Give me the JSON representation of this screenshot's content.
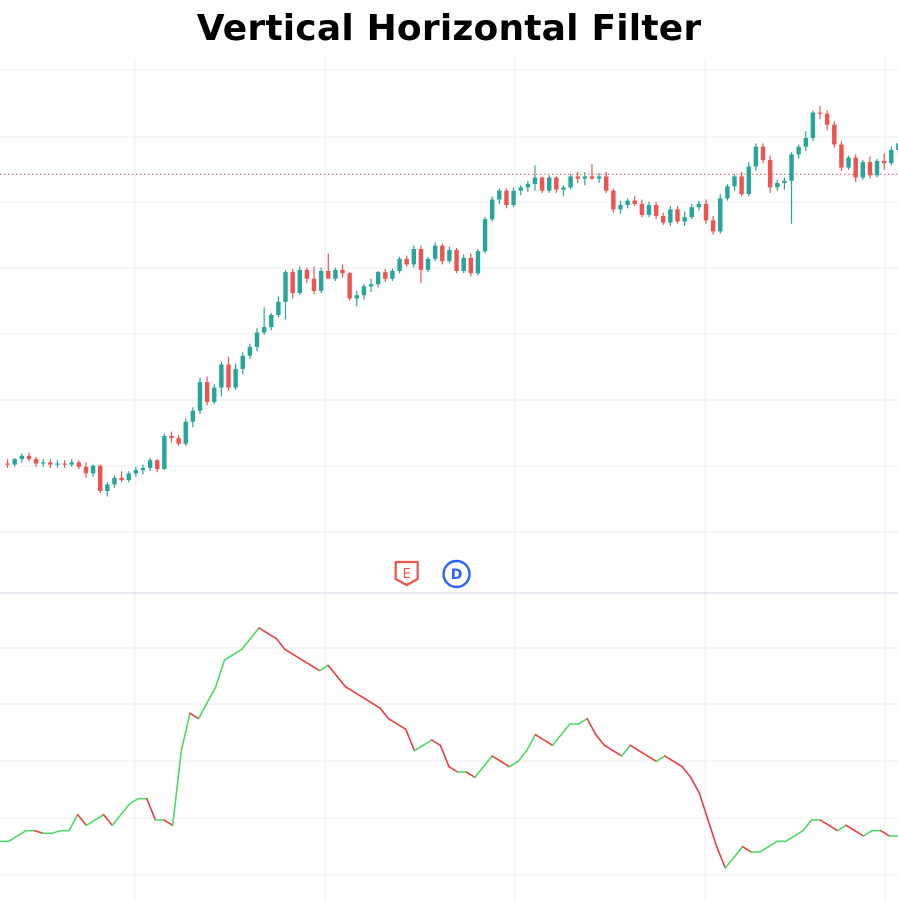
{
  "title": "Vertical Horizontal Filter",
  "colors": {
    "up": "#26a69a",
    "down": "#ef5350",
    "grid": "#eceef2",
    "separator": "#dfe3ec",
    "price_line": "#ef5350",
    "vhf_up": "#4cd964",
    "vhf_down": "#ef3b3b",
    "earnings_marker": "#ef5350",
    "dividend_marker": "#2962ff"
  },
  "markers": [
    {
      "label": "E",
      "kind": "earnings",
      "icon": "earnings-flag-icon",
      "index": 56
    },
    {
      "label": "D",
      "kind": "dividend",
      "icon": "dividend-circle-icon",
      "index": 63
    }
  ],
  "chart_data": [
    {
      "type": "candlestick",
      "title": "",
      "grid": true,
      "price_line": 62.8,
      "ylim": [
        25,
        73
      ],
      "ohlc": [
        [
          36.5,
          36.9,
          36.1,
          36.4
        ],
        [
          36.4,
          37.0,
          36.2,
          36.9
        ],
        [
          36.9,
          37.4,
          36.6,
          37.2
        ],
        [
          37.2,
          37.5,
          36.7,
          36.9
        ],
        [
          36.9,
          37.1,
          36.2,
          36.5
        ],
        [
          36.5,
          36.9,
          36.2,
          36.6
        ],
        [
          36.6,
          36.9,
          36.1,
          36.4
        ],
        [
          36.4,
          36.8,
          36.1,
          36.5
        ],
        [
          36.5,
          36.8,
          36.1,
          36.4
        ],
        [
          36.4,
          36.9,
          36.2,
          36.6
        ],
        [
          36.6,
          36.8,
          36.0,
          36.2
        ],
        [
          36.2,
          36.6,
          35.2,
          35.6
        ],
        [
          35.6,
          36.4,
          35.3,
          36.3
        ],
        [
          36.3,
          36.4,
          33.8,
          34.0
        ],
        [
          34.0,
          34.8,
          33.5,
          34.6
        ],
        [
          34.6,
          35.4,
          34.3,
          35.2
        ],
        [
          35.2,
          35.8,
          34.8,
          35.0
        ],
        [
          35.0,
          35.8,
          34.8,
          35.6
        ],
        [
          35.6,
          36.2,
          35.3,
          35.9
        ],
        [
          35.9,
          36.4,
          35.5,
          36.1
        ],
        [
          36.1,
          37.0,
          35.8,
          36.8
        ],
        [
          36.8,
          36.9,
          35.7,
          36.0
        ],
        [
          36.0,
          39.2,
          35.9,
          39.0
        ],
        [
          39.0,
          39.4,
          38.4,
          38.8
        ],
        [
          38.8,
          39.1,
          38.1,
          38.3
        ],
        [
          38.3,
          40.6,
          38.1,
          40.3
        ],
        [
          40.3,
          41.6,
          39.8,
          41.3
        ],
        [
          41.3,
          44.3,
          41.0,
          43.9
        ],
        [
          43.9,
          44.4,
          41.8,
          42.1
        ],
        [
          42.1,
          43.7,
          41.9,
          43.4
        ],
        [
          43.4,
          45.8,
          42.6,
          45.5
        ],
        [
          45.5,
          46.2,
          43.1,
          43.4
        ],
        [
          43.4,
          45.6,
          43.2,
          45.1
        ],
        [
          45.1,
          46.6,
          44.6,
          46.3
        ],
        [
          46.3,
          47.4,
          46.0,
          47.1
        ],
        [
          47.1,
          48.8,
          46.7,
          48.4
        ],
        [
          48.4,
          50.7,
          48.2,
          48.9
        ],
        [
          48.9,
          50.2,
          48.6,
          50.0
        ],
        [
          50.0,
          51.7,
          49.8,
          51.2
        ],
        [
          51.2,
          54.1,
          49.6,
          53.9
        ],
        [
          53.9,
          54.2,
          51.5,
          52.0
        ],
        [
          52.0,
          54.4,
          51.8,
          54.1
        ],
        [
          54.1,
          54.3,
          52.9,
          53.3
        ],
        [
          53.3,
          54.4,
          51.9,
          52.2
        ],
        [
          52.2,
          54.3,
          52.0,
          54.0
        ],
        [
          54.0,
          55.6,
          53.6,
          53.3
        ],
        [
          53.3,
          54.3,
          53.1,
          54.1
        ],
        [
          54.1,
          54.6,
          53.4,
          53.8
        ],
        [
          53.8,
          53.9,
          51.3,
          51.5
        ],
        [
          51.5,
          52.2,
          50.8,
          51.8
        ],
        [
          51.8,
          52.8,
          51.4,
          52.6
        ],
        [
          52.6,
          53.3,
          52.1,
          52.8
        ],
        [
          52.8,
          54.0,
          52.5,
          53.9
        ],
        [
          53.9,
          54.2,
          53.0,
          53.3
        ],
        [
          53.3,
          54.2,
          53.1,
          54.0
        ],
        [
          54.0,
          55.3,
          53.8,
          55.1
        ],
        [
          55.1,
          55.4,
          54.4,
          54.6
        ],
        [
          54.6,
          56.3,
          54.3,
          56.0
        ],
        [
          56.0,
          56.3,
          52.9,
          54.1
        ],
        [
          54.1,
          55.3,
          53.9,
          55.1
        ],
        [
          55.1,
          56.6,
          54.9,
          56.3
        ],
        [
          56.3,
          56.5,
          54.6,
          54.9
        ],
        [
          54.9,
          56.2,
          54.7,
          55.9
        ],
        [
          55.9,
          56.1,
          53.8,
          54.0
        ],
        [
          54.0,
          55.5,
          53.8,
          55.2
        ],
        [
          55.2,
          55.6,
          53.5,
          53.8
        ],
        [
          53.8,
          56.0,
          53.6,
          55.8
        ],
        [
          55.8,
          58.9,
          55.6,
          58.7
        ],
        [
          58.7,
          60.8,
          58.5,
          60.5
        ],
        [
          60.5,
          61.5,
          60.1,
          61.3
        ],
        [
          61.3,
          61.5,
          59.7,
          60.0
        ],
        [
          60.0,
          61.6,
          59.8,
          61.3
        ],
        [
          61.3,
          61.8,
          60.9,
          61.6
        ],
        [
          61.6,
          62.2,
          61.2,
          61.9
        ],
        [
          61.9,
          63.6,
          61.3,
          62.5
        ],
        [
          62.5,
          62.6,
          61.1,
          61.3
        ],
        [
          61.3,
          62.7,
          61.1,
          62.5
        ],
        [
          62.5,
          62.6,
          61.1,
          61.4
        ],
        [
          61.4,
          61.8,
          60.8,
          61.6
        ],
        [
          61.6,
          62.8,
          61.4,
          62.6
        ],
        [
          62.6,
          63.0,
          62.0,
          62.4
        ],
        [
          62.4,
          63.0,
          61.8,
          62.6
        ],
        [
          62.6,
          63.7,
          62.3,
          62.4
        ],
        [
          62.4,
          62.9,
          62.0,
          62.6
        ],
        [
          62.6,
          63.0,
          61.1,
          61.3
        ],
        [
          61.3,
          61.5,
          59.3,
          59.6
        ],
        [
          59.6,
          60.4,
          59.2,
          60.0
        ],
        [
          60.0,
          60.6,
          59.7,
          60.4
        ],
        [
          60.4,
          60.8,
          59.9,
          60.1
        ],
        [
          60.1,
          60.5,
          58.9,
          59.1
        ],
        [
          59.1,
          60.3,
          58.9,
          60.0
        ],
        [
          60.0,
          60.3,
          58.7,
          59.0
        ],
        [
          59.0,
          59.3,
          58.2,
          58.4
        ],
        [
          58.4,
          59.9,
          58.1,
          59.6
        ],
        [
          59.6,
          59.9,
          58.3,
          58.5
        ],
        [
          58.5,
          59.4,
          58.1,
          58.9
        ],
        [
          58.9,
          60.1,
          58.7,
          59.8
        ],
        [
          59.8,
          60.4,
          59.5,
          60.1
        ],
        [
          60.1,
          60.5,
          58.3,
          58.6
        ],
        [
          58.6,
          59.0,
          57.3,
          57.6
        ],
        [
          57.6,
          61.0,
          57.4,
          60.6
        ],
        [
          60.6,
          61.9,
          60.4,
          61.7
        ],
        [
          61.7,
          62.8,
          61.3,
          62.6
        ],
        [
          62.6,
          63.0,
          60.8,
          61.0
        ],
        [
          61.0,
          63.9,
          60.8,
          63.5
        ],
        [
          63.5,
          65.6,
          63.1,
          65.3
        ],
        [
          65.3,
          65.6,
          63.8,
          64.1
        ],
        [
          64.1,
          64.5,
          61.1,
          61.6
        ],
        [
          61.6,
          62.3,
          61.3,
          62.0
        ],
        [
          62.0,
          62.5,
          61.4,
          62.2
        ],
        [
          62.2,
          64.8,
          58.3,
          64.6
        ],
        [
          64.6,
          65.5,
          64.2,
          65.3
        ],
        [
          65.3,
          66.7,
          64.9,
          66.1
        ],
        [
          66.1,
          68.6,
          65.8,
          68.4
        ],
        [
          68.4,
          69.0,
          67.8,
          68.3
        ],
        [
          68.3,
          68.6,
          66.8,
          67.3
        ],
        [
          67.3,
          67.6,
          65.2,
          65.5
        ],
        [
          65.5,
          65.8,
          63.1,
          63.4
        ],
        [
          63.4,
          64.5,
          63.2,
          64.3
        ],
        [
          64.3,
          64.6,
          62.1,
          62.5
        ],
        [
          62.5,
          64.1,
          62.3,
          63.9
        ],
        [
          63.9,
          64.4,
          62.4,
          62.7
        ],
        [
          62.7,
          64.2,
          62.5,
          64.0
        ],
        [
          64.0,
          64.7,
          63.2,
          63.8
        ],
        [
          63.8,
          65.3,
          63.6,
          65.0
        ],
        [
          65.0,
          65.9,
          64.5,
          65.6
        ]
      ]
    },
    {
      "type": "line",
      "title": "",
      "name": "",
      "grid": true,
      "ylim": [
        0.05,
        0.62
      ],
      "values": [
        0.16,
        0.16,
        0.17,
        0.18,
        0.18,
        0.175,
        0.175,
        0.18,
        0.18,
        0.21,
        0.19,
        0.2,
        0.21,
        0.19,
        0.21,
        0.23,
        0.24,
        0.24,
        0.2,
        0.2,
        0.19,
        0.33,
        0.4,
        0.39,
        0.42,
        0.45,
        0.5,
        0.51,
        0.52,
        0.54,
        0.56,
        0.55,
        0.54,
        0.52,
        0.51,
        0.5,
        0.49,
        0.48,
        0.49,
        0.47,
        0.45,
        0.44,
        0.43,
        0.42,
        0.41,
        0.39,
        0.38,
        0.37,
        0.33,
        0.34,
        0.35,
        0.34,
        0.3,
        0.29,
        0.29,
        0.28,
        0.3,
        0.32,
        0.31,
        0.3,
        0.31,
        0.33,
        0.36,
        0.35,
        0.34,
        0.36,
        0.38,
        0.38,
        0.39,
        0.36,
        0.34,
        0.33,
        0.32,
        0.34,
        0.33,
        0.32,
        0.31,
        0.32,
        0.31,
        0.3,
        0.28,
        0.25,
        0.2,
        0.15,
        0.11,
        0.13,
        0.15,
        0.14,
        0.14,
        0.15,
        0.16,
        0.16,
        0.17,
        0.18,
        0.2,
        0.2,
        0.19,
        0.18,
        0.19,
        0.18,
        0.17,
        0.18,
        0.18,
        0.17,
        0.17
      ]
    }
  ]
}
